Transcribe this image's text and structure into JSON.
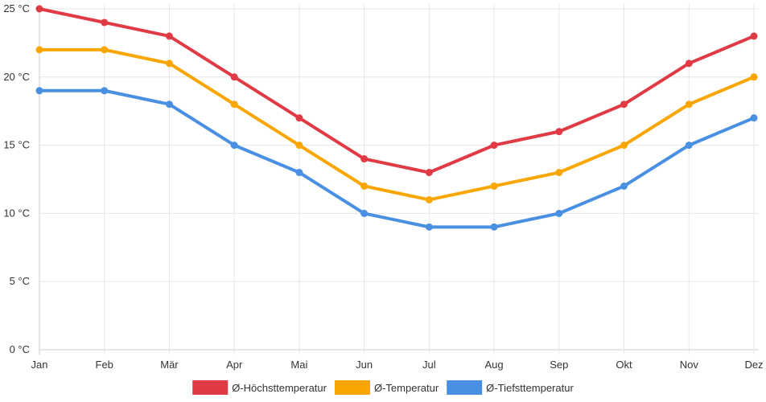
{
  "chart_data": {
    "type": "line",
    "title": "",
    "xlabel": "",
    "ylabel": "",
    "categories": [
      "Jan",
      "Feb",
      "Mär",
      "Apr",
      "Mai",
      "Jun",
      "Jul",
      "Aug",
      "Sep",
      "Okt",
      "Nov",
      "Dez"
    ],
    "y_unit": " °C",
    "ylim": [
      0,
      25
    ],
    "y_ticks": [
      0,
      5,
      10,
      15,
      20,
      25
    ],
    "grid": true,
    "legend_position": "bottom",
    "series": [
      {
        "name": "Ø-Höchsttemperatur",
        "color": "#e03a45",
        "values": [
          25,
          24,
          23,
          20,
          17,
          14,
          13,
          15,
          16,
          18,
          21,
          23
        ]
      },
      {
        "name": "Ø-Temperatur",
        "color": "#f9a602",
        "values": [
          22,
          22,
          21,
          18,
          15,
          12,
          11,
          12,
          13,
          15,
          18,
          20
        ]
      },
      {
        "name": "Ø-Tiefsttemperatur",
        "color": "#4a90e2",
        "values": [
          19,
          19,
          18,
          15,
          13,
          10,
          9,
          9,
          10,
          12,
          15,
          17
        ]
      }
    ]
  }
}
